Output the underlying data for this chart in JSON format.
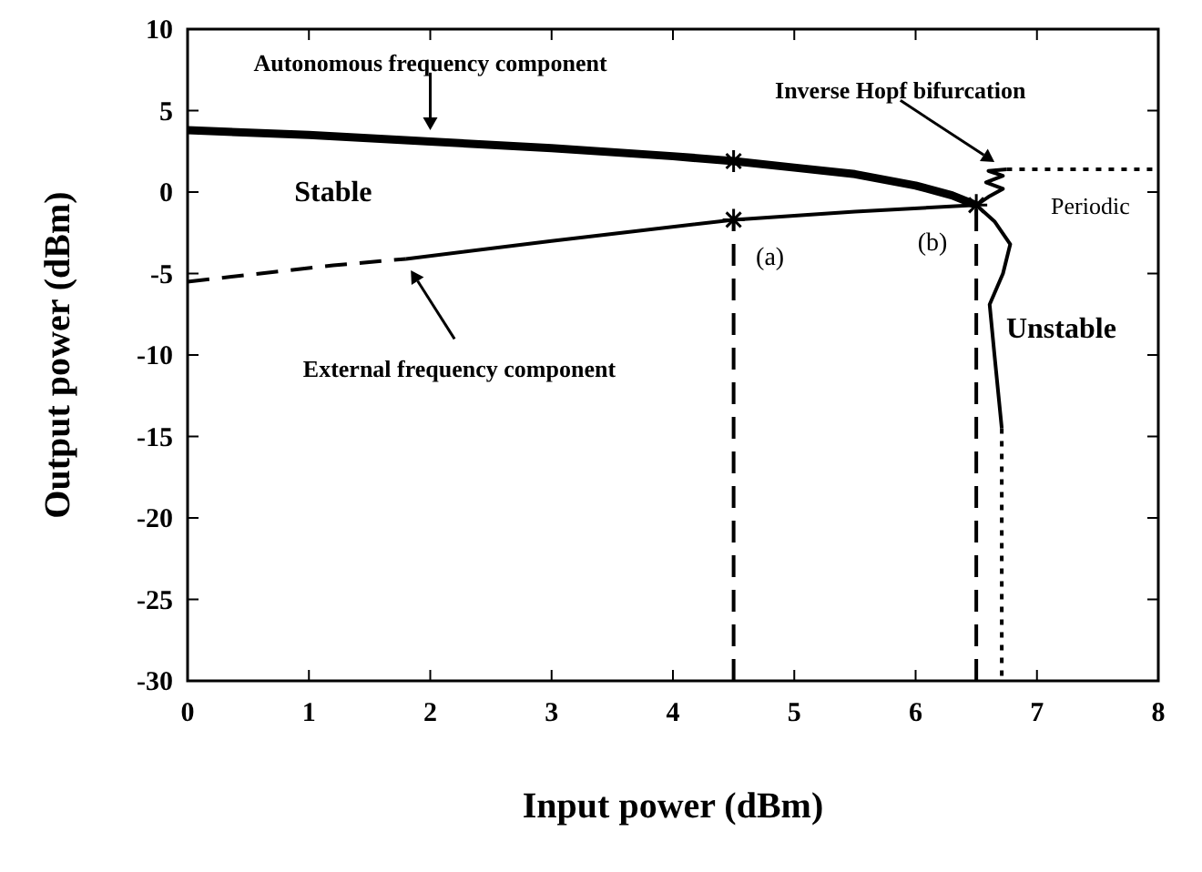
{
  "chart_data": {
    "type": "line",
    "xlabel": "Input power (dBm)",
    "ylabel": "Output power (dBm)",
    "xlim": [
      0,
      8
    ],
    "xticks": [
      0,
      1,
      2,
      3,
      4,
      5,
      6,
      7,
      8
    ],
    "ylim": [
      -30,
      10
    ],
    "yticks": [
      -30,
      -25,
      -20,
      -15,
      -10,
      -5,
      0,
      5,
      10
    ],
    "grid": false,
    "marker": "none",
    "series": [
      {
        "color": "#000000",
        "line_style": "solid",
        "x": [
          0,
          1,
          2,
          3,
          4,
          4.5,
          5,
          5.5,
          6,
          6.3,
          6.5
        ],
        "values": [
          3.8,
          3.5,
          3.1,
          2.7,
          2.2,
          1.9,
          1.5,
          1.1,
          0.4,
          -0.2,
          -0.8
        ]
      },
      {
        "color": "#000000",
        "line_style": "dashed",
        "x": [
          0,
          0.6,
          1.2,
          1.8
        ],
        "values": [
          -5.5,
          -5,
          -4.5,
          -4.1
        ]
      },
      {
        "color": "#000000",
        "line_style": "solid",
        "x": [
          1.8,
          3,
          4.5,
          5.5,
          6.5
        ],
        "values": [
          -4.1,
          -3.0,
          -1.7,
          -1.2,
          -0.8
        ]
      },
      {
        "color": "#000000",
        "line_style": "solid",
        "x": [
          6.5,
          6.65,
          6.78,
          6.72,
          6.61,
          6.65,
          6.71
        ],
        "values": [
          -0.8,
          -1.8,
          -3.2,
          -5,
          -6.9,
          -10,
          -14.5
        ]
      },
      {
        "color": "#000000",
        "line_style": "dotted",
        "x": [
          6.71,
          6.71
        ],
        "values": [
          -14.5,
          -30
        ]
      },
      {
        "color": "#000000",
        "line_style": "solid",
        "x": [
          6.5,
          6.6,
          6.72,
          6.58,
          6.72,
          6.6,
          6.75
        ],
        "values": [
          -0.8,
          -0.3,
          0.2,
          0.6,
          1.0,
          1.3,
          1.4
        ]
      },
      {
        "color": "#000000",
        "line_style": "dotted",
        "x": [
          6.75,
          8
        ],
        "values": [
          1.4,
          1.4
        ]
      },
      {
        "color": "#000000",
        "line_style": "dashed",
        "x": [
          4.5,
          4.5
        ],
        "values": [
          -30,
          -1.7
        ]
      },
      {
        "color": "#000000",
        "line_style": "dashed",
        "x": [
          6.5,
          6.5
        ],
        "values": [
          -30,
          -0.8
        ]
      },
      {
        "type": "scatter",
        "marker": "cross",
        "color": "#000000",
        "x": [
          4.5,
          4.5,
          6.5
        ],
        "values": [
          1.9,
          -1.7,
          -0.8
        ]
      }
    ],
    "annotations": [
      "Autonomous frequency component",
      "Stable",
      "External frequency component",
      {
        "text": "Inverse Hopf bifurcation",
        "x": 6.7,
        "y": 1.6
      },
      "Periodic",
      {
        "text": "(a)",
        "x": 4.5,
        "y": -1.7
      },
      {
        "text": "(b)",
        "x": 6.5,
        "y": -0.8
      },
      "Unstable"
    ]
  }
}
